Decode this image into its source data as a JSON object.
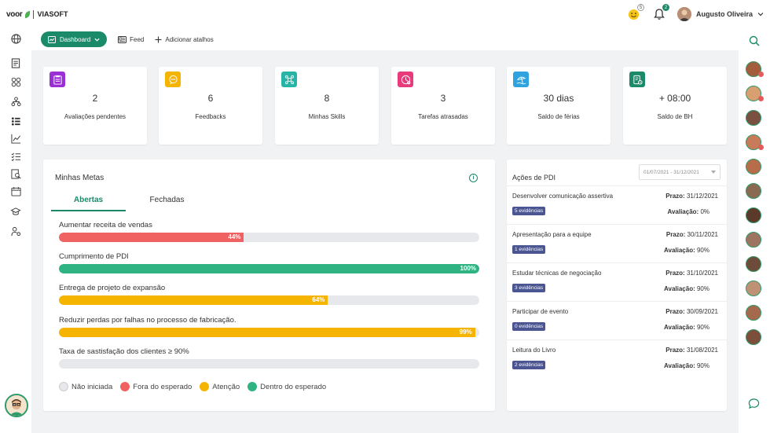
{
  "app": {
    "brand": "voor",
    "company": "VIASOFT"
  },
  "header": {
    "emoji_badge": "5",
    "notif_badge": "2",
    "user_name": "Augusto Oliveira"
  },
  "toolbar": {
    "dashboard_label": "Dashboard",
    "feed_label": "Feed",
    "add_shortcut_label": "Adicionar atalhos"
  },
  "stats": [
    {
      "value": "2",
      "label": "Avaliações pendentes",
      "icon": "clipboard-icon",
      "color": "#9b2fd6"
    },
    {
      "value": "6",
      "label": "Feedbacks",
      "icon": "chat-icon",
      "color": "#f5b400"
    },
    {
      "value": "8",
      "label": "Minhas Skills",
      "icon": "skills-icon",
      "color": "#27b3a6"
    },
    {
      "value": "3",
      "label": "Tarefas atrasadas",
      "icon": "clock-alert-icon",
      "color": "#e83b7c"
    },
    {
      "value": "30 dias",
      "label": "Saldo de férias",
      "icon": "beach-icon",
      "color": "#2ea3e0"
    },
    {
      "value": "+ 08:00",
      "label": "Saldo de BH",
      "icon": "time-sheet-icon",
      "color": "#1b8a69"
    }
  ],
  "metas": {
    "title": "Minhas Metas",
    "tab_open": "Abertas",
    "tab_closed": "Fechadas",
    "goals": [
      {
        "label": "Aumentar receita de vendas",
        "percent": 44,
        "percent_text": "44%",
        "status": "fora"
      },
      {
        "label": "Cumprimento de PDI",
        "percent": 100,
        "percent_text": "100%",
        "status": "dentro"
      },
      {
        "label": "Entrega de projeto de expansão",
        "percent": 64,
        "percent_text": "64%",
        "status": "atencao"
      },
      {
        "label": "Reduzir perdas por falhas no processo de fabricação.",
        "percent": 99,
        "percent_text": "99%",
        "status": "atencao"
      },
      {
        "label": "Taxa de sastisfação dos clientes ≥ 90%",
        "percent": 0,
        "percent_text": "",
        "status": "nao"
      }
    ],
    "legend": [
      {
        "label": "Não iniciada",
        "color": "#e6e8eb"
      },
      {
        "label": "Fora do esperado",
        "color": "#f06262"
      },
      {
        "label": "Atenção",
        "color": "#f5b400"
      },
      {
        "label": "Dentro do esperado",
        "color": "#2fb383"
      }
    ]
  },
  "pdi": {
    "title": "Ações de PDI",
    "date_range": "01/07/2021 - 31/12/2021",
    "prazo_label": "Prazo:",
    "aval_label": "Avaliação:",
    "items": [
      {
        "name": "Desenvolver comunicação assertiva",
        "evidence": "5 evidências",
        "prazo": "31/12/2021",
        "avaliacao": "0%"
      },
      {
        "name": "Apresentação para a equipe",
        "evidence": "1 evidências",
        "prazo": "30/11/2021",
        "avaliacao": "90%"
      },
      {
        "name": "Estudar técnicas de negociação",
        "evidence": "3 evidências",
        "prazo": "31/10/2021",
        "avaliacao": "90%"
      },
      {
        "name": "Participar de evento",
        "evidence": "0 evidências",
        "prazo": "30/09/2021",
        "avaliacao": "90%"
      },
      {
        "name": "Leitura do Livro",
        "evidence": "2 evidências",
        "prazo": "31/08/2021",
        "avaliacao": "90%"
      }
    ]
  },
  "colors": {
    "accent": "#1b8a69",
    "danger": "#f06262",
    "warning": "#f5b400",
    "success": "#2fb383"
  }
}
